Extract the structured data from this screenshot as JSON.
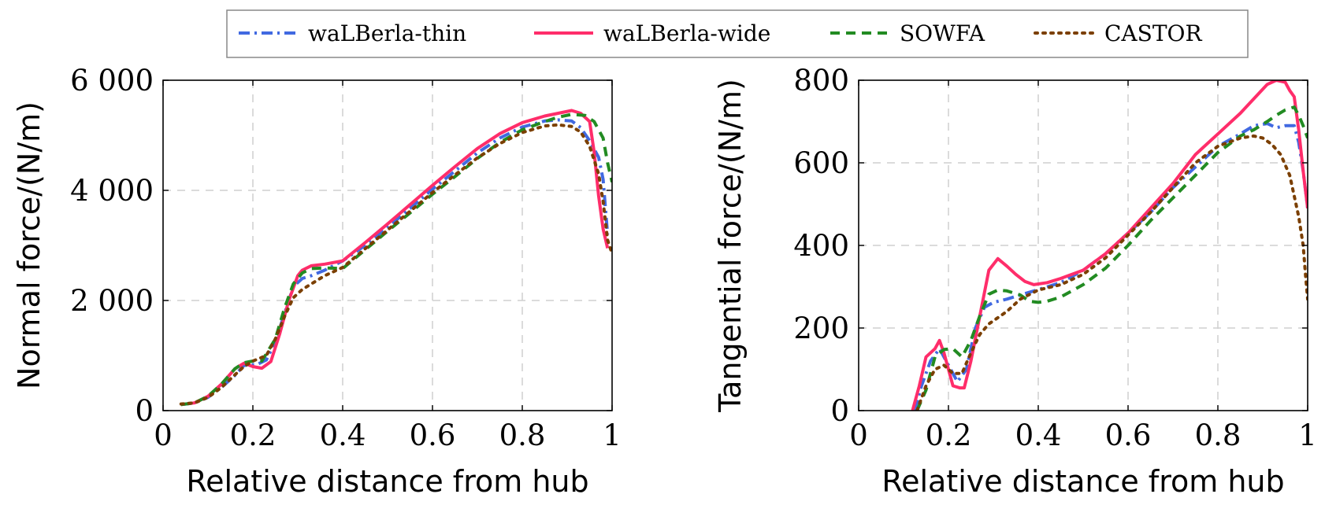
{
  "legend": {
    "placement": "top-center, outside plots",
    "entries": [
      {
        "label": "waLBerla-thin",
        "color": "#4169e1",
        "dash": "dash-dot"
      },
      {
        "label": "waLBerla-wide",
        "color": "#ff2d6a",
        "dash": "solid"
      },
      {
        "label": "SOWFA",
        "color": "#228b22",
        "dash": "dashed"
      },
      {
        "label": "CASTOR",
        "color": "#7b3f00",
        "dash": "dotted"
      }
    ]
  },
  "chart_data": [
    {
      "type": "line",
      "xlabel": "Relative distance from hub",
      "ylabel": "Normal force/(N/m)",
      "xlim": [
        0,
        1
      ],
      "ylim": [
        0,
        6000
      ],
      "xticks": [
        0,
        0.2,
        0.4,
        0.6,
        0.8,
        1
      ],
      "xtick_labels": [
        "0",
        "0.2",
        "0.4",
        "0.6",
        "0.8",
        "1"
      ],
      "yticks": [
        0,
        2000,
        4000,
        6000
      ],
      "ytick_labels": [
        "0",
        "2 000",
        "4 000",
        "6 000"
      ],
      "grid": true,
      "series": [
        {
          "name": "waLBerla-thin",
          "x": [
            0.04,
            0.07,
            0.1,
            0.13,
            0.16,
            0.18,
            0.21,
            0.23,
            0.25,
            0.27,
            0.29,
            0.31,
            0.33,
            0.36,
            0.4,
            0.45,
            0.5,
            0.55,
            0.6,
            0.65,
            0.7,
            0.75,
            0.8,
            0.85,
            0.88,
            0.91,
            0.93,
            0.95,
            0.97,
            0.98,
            0.99
          ],
          "y": [
            110,
            140,
            240,
            420,
            640,
            820,
            840,
            920,
            1250,
            1750,
            2250,
            2400,
            2450,
            2550,
            2720,
            3000,
            3330,
            3670,
            4020,
            4350,
            4680,
            4950,
            5150,
            5260,
            5280,
            5260,
            5140,
            4900,
            4600,
            4200,
            3200
          ]
        },
        {
          "name": "waLBerla-wide",
          "x": [
            0.04,
            0.07,
            0.1,
            0.13,
            0.16,
            0.18,
            0.2,
            0.22,
            0.24,
            0.26,
            0.28,
            0.3,
            0.31,
            0.33,
            0.36,
            0.4,
            0.45,
            0.5,
            0.55,
            0.6,
            0.65,
            0.7,
            0.75,
            0.8,
            0.85,
            0.88,
            0.91,
            0.93,
            0.95,
            0.96,
            0.97,
            0.98,
            0.99
          ],
          "y": [
            110,
            140,
            260,
            480,
            760,
            860,
            800,
            770,
            890,
            1400,
            2000,
            2450,
            2550,
            2630,
            2660,
            2720,
            3050,
            3390,
            3740,
            4090,
            4430,
            4760,
            5030,
            5230,
            5350,
            5400,
            5450,
            5400,
            5250,
            4700,
            3900,
            3300,
            2950
          ]
        },
        {
          "name": "SOWFA",
          "x": [
            0.04,
            0.07,
            0.1,
            0.13,
            0.16,
            0.18,
            0.2,
            0.22,
            0.25,
            0.27,
            0.29,
            0.31,
            0.33,
            0.36,
            0.4,
            0.45,
            0.5,
            0.55,
            0.6,
            0.65,
            0.7,
            0.75,
            0.8,
            0.85,
            0.88,
            0.91,
            0.94,
            0.96,
            0.98,
            0.99,
            1.0
          ],
          "y": [
            110,
            140,
            260,
            480,
            760,
            870,
            900,
            900,
            1300,
            1850,
            2300,
            2500,
            2580,
            2590,
            2580,
            2920,
            3260,
            3590,
            3930,
            4250,
            4580,
            4870,
            5100,
            5250,
            5330,
            5380,
            5360,
            5250,
            4950,
            4500,
            4150
          ]
        },
        {
          "name": "CASTOR",
          "x": [
            0.04,
            0.07,
            0.1,
            0.13,
            0.16,
            0.18,
            0.2,
            0.23,
            0.25,
            0.27,
            0.29,
            0.31,
            0.33,
            0.36,
            0.4,
            0.45,
            0.5,
            0.55,
            0.6,
            0.65,
            0.7,
            0.75,
            0.8,
            0.85,
            0.88,
            0.91,
            0.93,
            0.95,
            0.97,
            0.98,
            0.99,
            1.0
          ],
          "y": [
            120,
            140,
            240,
            420,
            650,
            800,
            900,
            1000,
            1300,
            1700,
            2050,
            2200,
            2300,
            2450,
            2600,
            2940,
            3280,
            3620,
            3960,
            4280,
            4590,
            4850,
            5050,
            5170,
            5190,
            5160,
            5060,
            4800,
            4300,
            3800,
            3100,
            2850
          ]
        }
      ]
    },
    {
      "type": "line",
      "xlabel": "Relative distance from hub",
      "ylabel": "Tangential force/(N/m)",
      "xlim": [
        0,
        1
      ],
      "ylim": [
        0,
        800
      ],
      "xticks": [
        0,
        0.2,
        0.4,
        0.6,
        0.8,
        1
      ],
      "xtick_labels": [
        "0",
        "0.2",
        "0.4",
        "0.6",
        "0.8",
        "1"
      ],
      "yticks": [
        0,
        200,
        400,
        600,
        800
      ],
      "ytick_labels": [
        "0",
        "200",
        "400",
        "600",
        "800"
      ],
      "grid": true,
      "series": [
        {
          "name": "waLBerla-thin",
          "x": [
            0.125,
            0.14,
            0.16,
            0.18,
            0.2,
            0.22,
            0.24,
            0.26,
            0.28,
            0.3,
            0.33,
            0.36,
            0.4,
            0.45,
            0.5,
            0.55,
            0.6,
            0.65,
            0.7,
            0.75,
            0.8,
            0.85,
            0.88,
            0.91,
            0.93,
            0.95,
            0.97,
            0.98,
            0.99,
            1.0
          ],
          "y": [
            0,
            60,
            120,
            150,
            110,
            70,
            100,
            200,
            250,
            262,
            270,
            280,
            293,
            310,
            340,
            380,
            430,
            480,
            540,
            590,
            640,
            670,
            690,
            695,
            685,
            690,
            690,
            650,
            580,
            490
          ]
        },
        {
          "name": "waLBerla-wide",
          "x": [
            0.12,
            0.135,
            0.15,
            0.17,
            0.18,
            0.19,
            0.21,
            0.225,
            0.235,
            0.25,
            0.27,
            0.29,
            0.31,
            0.33,
            0.35,
            0.37,
            0.39,
            0.42,
            0.45,
            0.5,
            0.55,
            0.6,
            0.65,
            0.7,
            0.75,
            0.8,
            0.85,
            0.88,
            0.91,
            0.93,
            0.95,
            0.96,
            0.97,
            0.98,
            0.99,
            1.0
          ],
          "y": [
            0,
            60,
            130,
            150,
            170,
            140,
            60,
            55,
            55,
            120,
            230,
            340,
            368,
            350,
            330,
            313,
            305,
            310,
            320,
            340,
            380,
            430,
            490,
            550,
            620,
            670,
            720,
            755,
            790,
            800,
            795,
            775,
            760,
            680,
            580,
            490
          ]
        },
        {
          "name": "SOWFA",
          "x": [
            0.13,
            0.15,
            0.17,
            0.19,
            0.21,
            0.23,
            0.25,
            0.27,
            0.29,
            0.31,
            0.33,
            0.36,
            0.38,
            0.4,
            0.42,
            0.45,
            0.5,
            0.55,
            0.6,
            0.65,
            0.7,
            0.75,
            0.8,
            0.85,
            0.88,
            0.91,
            0.93,
            0.95,
            0.97,
            0.98,
            0.99,
            1.0
          ],
          "y": [
            0,
            50,
            130,
            148,
            150,
            130,
            170,
            230,
            282,
            292,
            290,
            280,
            265,
            262,
            265,
            275,
            305,
            345,
            400,
            460,
            515,
            570,
            625,
            665,
            680,
            700,
            715,
            728,
            735,
            715,
            690,
            660
          ]
        },
        {
          "name": "CASTOR",
          "x": [
            0.13,
            0.15,
            0.17,
            0.19,
            0.21,
            0.23,
            0.25,
            0.27,
            0.29,
            0.31,
            0.33,
            0.36,
            0.4,
            0.45,
            0.5,
            0.55,
            0.6,
            0.65,
            0.7,
            0.75,
            0.8,
            0.85,
            0.88,
            0.9,
            0.92,
            0.94,
            0.96,
            0.97,
            0.98,
            0.99,
            0.995,
            1.0
          ],
          "y": [
            0,
            60,
            100,
            110,
            90,
            90,
            140,
            185,
            210,
            225,
            240,
            270,
            292,
            305,
            330,
            370,
            425,
            480,
            540,
            600,
            640,
            660,
            665,
            660,
            645,
            620,
            570,
            520,
            470,
            400,
            330,
            270
          ]
        }
      ]
    }
  ]
}
